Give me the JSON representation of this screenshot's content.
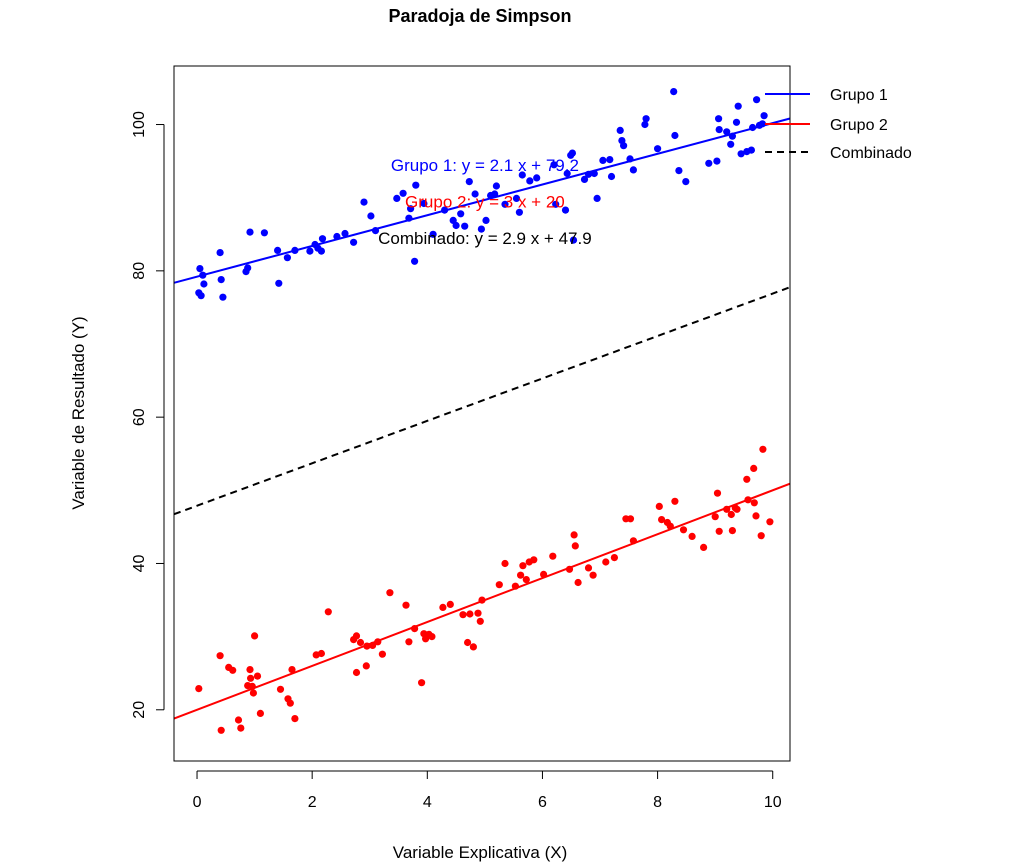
{
  "chart_data": {
    "type": "scatter",
    "title": "Paradoja de Simpson",
    "xlabel": "Variable Explicativa (X)",
    "ylabel": "Variable de Resultado (Y)",
    "xlim": [
      -0.4,
      10.3
    ],
    "ylim": [
      13,
      108
    ],
    "xticks": [
      "0",
      "2",
      "4",
      "6",
      "8",
      "10"
    ],
    "yticks": [
      "20",
      "40",
      "60",
      "80",
      "100"
    ],
    "grid": false,
    "legend_position": "top-right outside",
    "series": [
      {
        "name": "Grupo 1",
        "color": "#0000FF",
        "points": [
          [
            0.03,
            77
          ],
          [
            0.05,
            80.3
          ],
          [
            0.07,
            76.6
          ],
          [
            0.12,
            78.2
          ],
          [
            0.1,
            79.4
          ],
          [
            0.4,
            82.5
          ],
          [
            0.42,
            78.8
          ],
          [
            0.45,
            76.4
          ],
          [
            0.85,
            79.9
          ],
          [
            0.92,
            85.3
          ],
          [
            0.88,
            80.4
          ],
          [
            1.17,
            85.2
          ],
          [
            1.4,
            82.8
          ],
          [
            1.42,
            78.3
          ],
          [
            1.57,
            81.8
          ],
          [
            1.7,
            82.8
          ],
          [
            1.96,
            82.7
          ],
          [
            2.05,
            83.6
          ],
          [
            2.1,
            83.1
          ],
          [
            2.16,
            82.7
          ],
          [
            2.18,
            84.4
          ],
          [
            2.43,
            84.7
          ],
          [
            2.57,
            85.1
          ],
          [
            2.72,
            83.9
          ],
          [
            2.9,
            89.4
          ],
          [
            3.02,
            87.5
          ],
          [
            3.1,
            85.5
          ],
          [
            3.47,
            89.9
          ],
          [
            3.58,
            90.6
          ],
          [
            3.68,
            87.2
          ],
          [
            3.71,
            88.5
          ],
          [
            3.78,
            81.3
          ],
          [
            3.8,
            91.7
          ],
          [
            3.94,
            89.2
          ],
          [
            4.1,
            85
          ],
          [
            4.3,
            88.3
          ],
          [
            4.45,
            86.9
          ],
          [
            4.5,
            86.2
          ],
          [
            4.58,
            87.8
          ],
          [
            4.65,
            86.1
          ],
          [
            4.73,
            92.2
          ],
          [
            4.83,
            90.5
          ],
          [
            4.94,
            85.7
          ],
          [
            5.02,
            86.9
          ],
          [
            5.1,
            90.3
          ],
          [
            5.2,
            91.6
          ],
          [
            5.17,
            90.5
          ],
          [
            5.35,
            89.1
          ],
          [
            5.55,
            89.9
          ],
          [
            5.6,
            88
          ],
          [
            5.65,
            93.1
          ],
          [
            5.78,
            92.3
          ],
          [
            5.9,
            92.7
          ],
          [
            6.2,
            94.5
          ],
          [
            6.23,
            89.1
          ],
          [
            6.43,
            93.3
          ],
          [
            6.4,
            88.3
          ],
          [
            6.49,
            95.8
          ],
          [
            6.52,
            96.1
          ],
          [
            6.54,
            84.2
          ],
          [
            6.73,
            92.5
          ],
          [
            6.8,
            93.2
          ],
          [
            6.9,
            93.3
          ],
          [
            6.95,
            89.9
          ],
          [
            7.05,
            95.1
          ],
          [
            7.17,
            95.2
          ],
          [
            7.2,
            92.9
          ],
          [
            7.35,
            99.2
          ],
          [
            7.38,
            97.8
          ],
          [
            7.41,
            97.1
          ],
          [
            7.52,
            95.3
          ],
          [
            7.58,
            93.8
          ],
          [
            7.78,
            100
          ],
          [
            7.8,
            100.8
          ],
          [
            8.0,
            96.7
          ],
          [
            8.28,
            104.5
          ],
          [
            8.3,
            98.5
          ],
          [
            8.37,
            93.7
          ],
          [
            8.49,
            92.2
          ],
          [
            8.89,
            94.7
          ],
          [
            9.03,
            95
          ],
          [
            9.06,
            100.8
          ],
          [
            9.07,
            99.3
          ],
          [
            9.2,
            99
          ],
          [
            9.27,
            97.3
          ],
          [
            9.3,
            98.4
          ],
          [
            9.37,
            100.3
          ],
          [
            9.4,
            102.5
          ],
          [
            9.45,
            96
          ],
          [
            9.55,
            96.3
          ],
          [
            9.63,
            96.5
          ],
          [
            9.65,
            99.6
          ],
          [
            9.72,
            103.4
          ],
          [
            9.77,
            99.9
          ],
          [
            9.82,
            100.1
          ],
          [
            9.85,
            101.2
          ]
        ]
      },
      {
        "name": "Grupo 2",
        "color": "#FF0000",
        "points": [
          [
            0.03,
            22.9
          ],
          [
            0.4,
            27.4
          ],
          [
            0.42,
            17.2
          ],
          [
            0.55,
            25.8
          ],
          [
            0.62,
            25.4
          ],
          [
            0.72,
            18.6
          ],
          [
            0.76,
            17.5
          ],
          [
            0.88,
            23.3
          ],
          [
            0.92,
            25.5
          ],
          [
            0.93,
            24.3
          ],
          [
            0.96,
            23.2
          ],
          [
            0.98,
            22.3
          ],
          [
            1,
            30.1
          ],
          [
            1.05,
            24.6
          ],
          [
            1.1,
            19.5
          ],
          [
            1.45,
            22.8
          ],
          [
            1.58,
            21.5
          ],
          [
            1.62,
            20.9
          ],
          [
            1.65,
            25.5
          ],
          [
            1.7,
            18.8
          ],
          [
            2.07,
            27.5
          ],
          [
            2.16,
            27.7
          ],
          [
            2.28,
            33.4
          ],
          [
            2.72,
            29.6
          ],
          [
            2.77,
            30.1
          ],
          [
            2.77,
            25.1
          ],
          [
            2.84,
            29.2
          ],
          [
            2.94,
            26
          ],
          [
            2.95,
            28.7
          ],
          [
            3.05,
            28.8
          ],
          [
            3.14,
            29.3
          ],
          [
            3.22,
            27.6
          ],
          [
            3.35,
            36
          ],
          [
            3.63,
            34.3
          ],
          [
            3.68,
            29.3
          ],
          [
            3.78,
            31.1
          ],
          [
            3.9,
            23.7
          ],
          [
            3.94,
            30.4
          ],
          [
            3.97,
            29.7
          ],
          [
            4.03,
            30.3
          ],
          [
            4.08,
            30
          ],
          [
            4.27,
            34
          ],
          [
            4.4,
            34.4
          ],
          [
            4.62,
            33
          ],
          [
            4.7,
            29.2
          ],
          [
            4.74,
            33.1
          ],
          [
            4.8,
            28.6
          ],
          [
            4.88,
            33.2
          ],
          [
            4.92,
            32.1
          ],
          [
            4.95,
            35
          ],
          [
            5.25,
            37.1
          ],
          [
            5.35,
            40
          ],
          [
            5.53,
            36.9
          ],
          [
            5.62,
            38.4
          ],
          [
            5.66,
            39.7
          ],
          [
            5.72,
            37.8
          ],
          [
            5.77,
            40.2
          ],
          [
            5.85,
            40.5
          ],
          [
            6.02,
            38.5
          ],
          [
            6.18,
            41
          ],
          [
            6.47,
            39.2
          ],
          [
            6.55,
            43.9
          ],
          [
            6.57,
            42.4
          ],
          [
            6.62,
            37.4
          ],
          [
            6.8,
            39.4
          ],
          [
            6.88,
            38.4
          ],
          [
            7.1,
            40.2
          ],
          [
            7.25,
            40.8
          ],
          [
            7.45,
            46.1
          ],
          [
            7.53,
            46.1
          ],
          [
            7.58,
            43.1
          ],
          [
            8.03,
            47.8
          ],
          [
            8.07,
            46
          ],
          [
            8.17,
            45.6
          ],
          [
            8.22,
            45.1
          ],
          [
            8.3,
            48.5
          ],
          [
            8.45,
            44.6
          ],
          [
            8.6,
            43.7
          ],
          [
            8.8,
            42.2
          ],
          [
            9.0,
            46.4
          ],
          [
            9.04,
            49.6
          ],
          [
            9.07,
            44.4
          ],
          [
            9.2,
            47.4
          ],
          [
            9.28,
            46.7
          ],
          [
            9.3,
            44.5
          ],
          [
            9.35,
            47.6
          ],
          [
            9.38,
            47.4
          ],
          [
            9.55,
            51.5
          ],
          [
            9.57,
            48.7
          ],
          [
            9.67,
            53
          ],
          [
            9.68,
            48.3
          ],
          [
            9.71,
            46.5
          ],
          [
            9.83,
            55.6
          ],
          [
            9.8,
            43.8
          ],
          [
            9.95,
            45.7
          ]
        ]
      }
    ],
    "lines": [
      {
        "name": "Grupo 1",
        "color": "#0000FF",
        "dash": "solid",
        "intercept": 79.2,
        "slope": 2.1
      },
      {
        "name": "Grupo 2",
        "color": "#FF0000",
        "dash": "solid",
        "intercept": 20,
        "slope": 3
      },
      {
        "name": "Combinado",
        "color": "#000000",
        "dash": "dashed",
        "intercept": 47.9,
        "slope": 2.9
      }
    ],
    "annotations": [
      {
        "text": "Grupo 1: y = 2.1 x + 79.2",
        "color": "#0000FF",
        "x": 5,
        "y": 94.5
      },
      {
        "text": "Grupo 2: y = 3 x + 20",
        "color": "#FF0000",
        "x": 5,
        "y": 89.5
      },
      {
        "text": "Combinado: y = 2.9 x + 47.9",
        "color": "#000000",
        "x": 5,
        "y": 84.5
      }
    ]
  }
}
